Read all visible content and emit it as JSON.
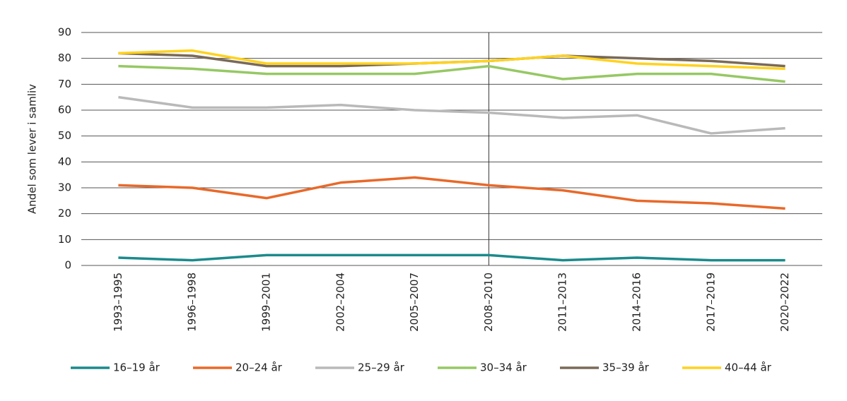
{
  "chart_data": {
    "type": "line",
    "y_label": "Andel som lever i samliv",
    "categories": [
      "1993–1995",
      "1996–1998",
      "1999–2001",
      "2002–2004",
      "2005–2007",
      "2008–2010",
      "2011–2013",
      "2014–2016",
      "2017–2019",
      "2020–2022"
    ],
    "series": [
      {
        "name": "16–19 år",
        "color": "#1b8a8c",
        "values": [
          3,
          2,
          4,
          4,
          4,
          4,
          2,
          3,
          2,
          2
        ]
      },
      {
        "name": "20–24 år",
        "color": "#e8692a",
        "values": [
          31,
          30,
          26,
          32,
          34,
          31,
          29,
          25,
          24,
          22
        ]
      },
      {
        "name": "25–29 år",
        "color": "#b9b9b9",
        "values": [
          65,
          61,
          61,
          62,
          60,
          59,
          57,
          58,
          51,
          53
        ]
      },
      {
        "name": "30–34 år",
        "color": "#96c864",
        "values": [
          77,
          76,
          74,
          74,
          74,
          77,
          72,
          74,
          74,
          71
        ]
      },
      {
        "name": "35–39 år",
        "color": "#7a6a58",
        "values": [
          82,
          81,
          77,
          77,
          78,
          79,
          81,
          80,
          79,
          77
        ]
      },
      {
        "name": "40–44 år",
        "color": "#ffd21e",
        "values": [
          82,
          83,
          78,
          78,
          78,
          79,
          81,
          78,
          77,
          76
        ]
      }
    ],
    "ylim": [
      0,
      90
    ],
    "yticks": [
      0,
      10,
      20,
      30,
      40,
      50,
      60,
      70,
      80,
      90
    ],
    "grid": true
  }
}
